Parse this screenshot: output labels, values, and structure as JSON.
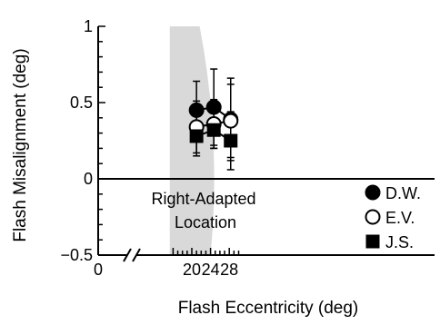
{
  "chart_data": {
    "type": "scatter",
    "xlabel": "Flash Eccentricity (deg)",
    "ylabel": "Flash Misalignment (deg)",
    "xlim": [
      0,
      30
    ],
    "ylim": [
      -0.5,
      1
    ],
    "x_ticks": [
      "0",
      "20",
      "24",
      "28"
    ],
    "x_tick_values": [
      0,
      20,
      24,
      28
    ],
    "y_ticks": [
      "1",
      "0.5",
      "0",
      "−0.5"
    ],
    "y_tick_values": [
      1,
      0.5,
      0,
      -0.5
    ],
    "axis_break": true,
    "shaded_region": {
      "label_line1": "Right-Adapted",
      "label_line2": "Location",
      "x_start": 15.3,
      "x_end": 24,
      "color": "#d9d9d9"
    },
    "series": [
      {
        "name": "D.W.",
        "marker": "filled-circle",
        "x": [
          21,
          24.7,
          28.3
        ],
        "y": [
          0.45,
          0.47,
          0.39
        ],
        "err": [
          0.19,
          0.25,
          0.27
        ]
      },
      {
        "name": "E.V.",
        "marker": "open-circle",
        "x": [
          21,
          24.7,
          28.3
        ],
        "y": [
          0.34,
          0.36,
          0.38
        ],
        "err": [
          0.17,
          0.16,
          0.24
        ]
      },
      {
        "name": "J.S.",
        "marker": "filled-square",
        "x": [
          21,
          24.7,
          28.3
        ],
        "y": [
          0.28,
          0.32,
          0.25
        ],
        "err": [
          0.13,
          0.12,
          0.19
        ]
      }
    ],
    "legend_placement": "right, lower half"
  }
}
